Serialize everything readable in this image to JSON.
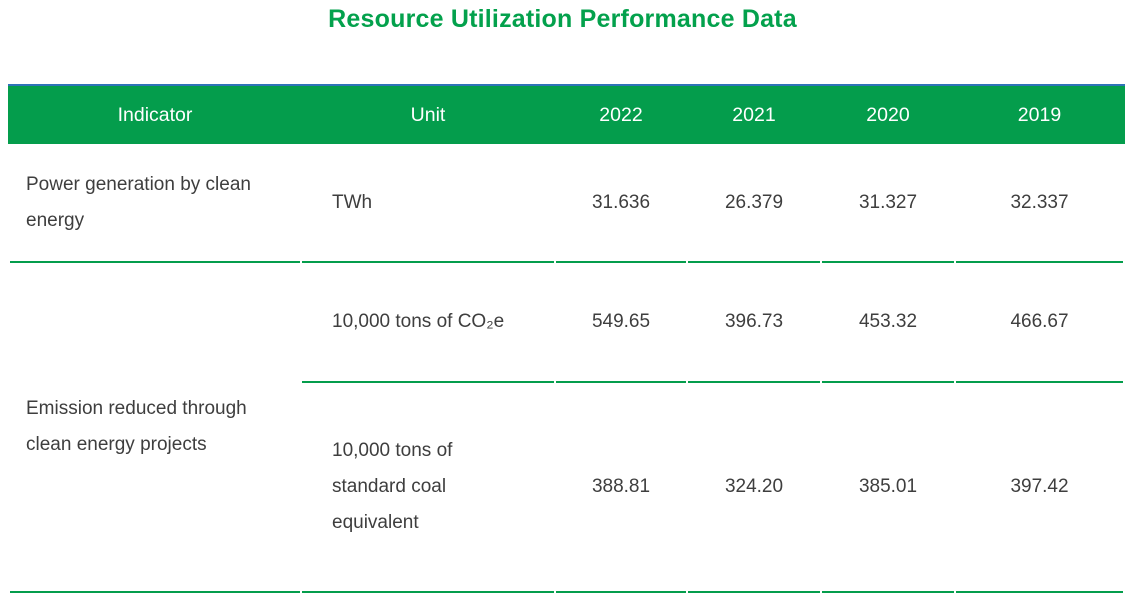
{
  "title": "Resource Utilization Performance Data",
  "colors": {
    "accent_green": "#049D4C",
    "title_green": "#03A14C",
    "accent_blue": "#2E73B7",
    "text": "#3E3E3E",
    "header_text": "#FFFFFF"
  },
  "chart_data": {
    "type": "table",
    "title": "Resource Utilization Performance Data",
    "columns": [
      "Indicator",
      "Unit",
      "2022",
      "2021",
      "2020",
      "2019"
    ],
    "rows": [
      {
        "indicator": "Power generation by clean energy",
        "unit": "TWh",
        "values": [
          "31.636",
          "26.379",
          "31.327",
          "32.337"
        ]
      },
      {
        "indicator": "Emission reduced through clean energy projects",
        "unit": "10,000 tons of CO₂e",
        "values": [
          "549.65",
          "396.73",
          "453.32",
          "466.67"
        ]
      },
      {
        "indicator": "Emission reduced through clean energy projects",
        "unit": "10,000 tons of standard coal equivalent",
        "values": [
          "388.81",
          "324.20",
          "385.01",
          "397.42"
        ]
      }
    ]
  }
}
